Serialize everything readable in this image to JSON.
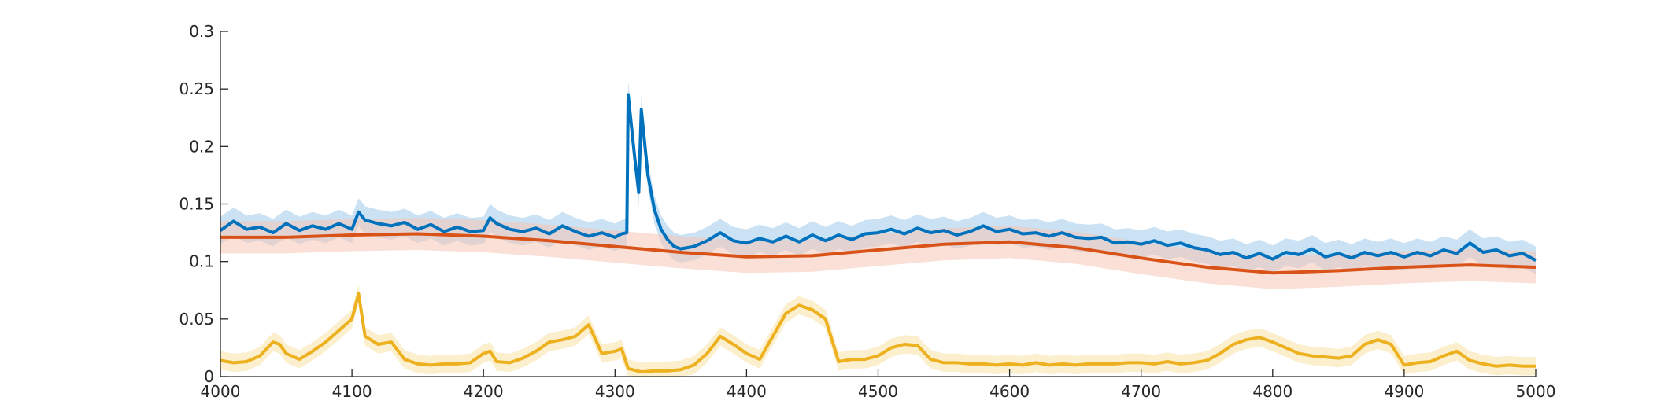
{
  "chart_data": {
    "type": "line",
    "title": "",
    "xlabel": "",
    "ylabel": "",
    "xlim": [
      4000,
      5000
    ],
    "ylim": [
      0,
      0.3
    ],
    "xticks": [
      4000,
      4100,
      4200,
      4300,
      4400,
      4500,
      4600,
      4700,
      4800,
      4900,
      5000
    ],
    "xtick_labels": [
      "4000",
      "4100",
      "4200",
      "4300",
      "4400",
      "4500",
      "4600",
      "4700",
      "4800",
      "4900",
      "5000"
    ],
    "yticks": [
      0,
      0.05,
      0.1,
      0.15,
      0.2,
      0.25,
      0.3
    ],
    "ytick_labels": [
      "0",
      "0.05",
      "0.1",
      "0.15",
      "0.2",
      "0.25",
      "0.3"
    ],
    "grid": false,
    "legend": "none",
    "series": [
      {
        "color": "#0072BD",
        "band_color": "#9ECAE9",
        "band_halfwidth": 0.012,
        "x": [
          4000,
          4010,
          4020,
          4030,
          4040,
          4050,
          4060,
          4070,
          4080,
          4090,
          4100,
          4105,
          4110,
          4120,
          4130,
          4140,
          4150,
          4160,
          4170,
          4180,
          4190,
          4200,
          4205,
          4210,
          4220,
          4230,
          4240,
          4250,
          4260,
          4270,
          4280,
          4290,
          4300,
          4305,
          4309,
          4310,
          4315,
          4318,
          4320,
          4325,
          4330,
          4335,
          4340,
          4345,
          4350,
          4360,
          4370,
          4380,
          4390,
          4400,
          4410,
          4420,
          4430,
          4440,
          4450,
          4460,
          4470,
          4480,
          4490,
          4500,
          4510,
          4520,
          4530,
          4540,
          4550,
          4560,
          4570,
          4580,
          4590,
          4600,
          4610,
          4620,
          4630,
          4640,
          4650,
          4660,
          4670,
          4680,
          4690,
          4700,
          4710,
          4720,
          4730,
          4740,
          4750,
          4760,
          4770,
          4780,
          4790,
          4800,
          4810,
          4820,
          4830,
          4840,
          4850,
          4860,
          4870,
          4880,
          4890,
          4900,
          4910,
          4920,
          4930,
          4940,
          4950,
          4960,
          4970,
          4980,
          4990,
          5000
        ],
        "y": [
          0.127,
          0.135,
          0.128,
          0.13,
          0.125,
          0.133,
          0.127,
          0.131,
          0.128,
          0.133,
          0.128,
          0.143,
          0.136,
          0.133,
          0.131,
          0.134,
          0.128,
          0.132,
          0.126,
          0.13,
          0.126,
          0.127,
          0.138,
          0.133,
          0.128,
          0.126,
          0.129,
          0.124,
          0.131,
          0.126,
          0.122,
          0.125,
          0.121,
          0.124,
          0.125,
          0.245,
          0.19,
          0.16,
          0.232,
          0.175,
          0.145,
          0.128,
          0.119,
          0.113,
          0.111,
          0.113,
          0.118,
          0.125,
          0.118,
          0.116,
          0.12,
          0.117,
          0.122,
          0.117,
          0.123,
          0.118,
          0.123,
          0.119,
          0.124,
          0.125,
          0.128,
          0.124,
          0.129,
          0.125,
          0.127,
          0.123,
          0.126,
          0.131,
          0.126,
          0.128,
          0.124,
          0.125,
          0.122,
          0.125,
          0.121,
          0.12,
          0.121,
          0.116,
          0.117,
          0.115,
          0.118,
          0.114,
          0.116,
          0.112,
          0.11,
          0.106,
          0.108,
          0.103,
          0.107,
          0.102,
          0.108,
          0.106,
          0.111,
          0.104,
          0.107,
          0.103,
          0.108,
          0.105,
          0.108,
          0.104,
          0.108,
          0.105,
          0.11,
          0.107,
          0.116,
          0.108,
          0.11,
          0.105,
          0.107,
          0.101
        ]
      },
      {
        "color": "#D95319",
        "band_color": "#F6C7B6",
        "band_halfwidth": 0.014,
        "x": [
          4000,
          4050,
          4100,
          4150,
          4200,
          4250,
          4300,
          4350,
          4400,
          4450,
          4500,
          4550,
          4600,
          4650,
          4700,
          4750,
          4800,
          4850,
          4900,
          4950,
          5000
        ],
        "y": [
          0.121,
          0.121,
          0.123,
          0.124,
          0.122,
          0.118,
          0.113,
          0.108,
          0.104,
          0.105,
          0.11,
          0.115,
          0.117,
          0.112,
          0.103,
          0.095,
          0.09,
          0.092,
          0.095,
          0.097,
          0.095
        ]
      },
      {
        "color": "#EDB120",
        "band_color": "#F8E2A6",
        "band_halfwidth": 0.008,
        "x": [
          4000,
          4010,
          4020,
          4030,
          4040,
          4045,
          4050,
          4060,
          4070,
          4080,
          4090,
          4100,
          4105,
          4110,
          4120,
          4130,
          4140,
          4150,
          4160,
          4170,
          4180,
          4190,
          4200,
          4205,
          4210,
          4220,
          4230,
          4240,
          4250,
          4260,
          4270,
          4280,
          4290,
          4300,
          4305,
          4310,
          4320,
          4330,
          4340,
          4350,
          4360,
          4370,
          4380,
          4390,
          4400,
          4410,
          4420,
          4430,
          4440,
          4450,
          4460,
          4470,
          4480,
          4490,
          4500,
          4510,
          4520,
          4530,
          4540,
          4550,
          4560,
          4570,
          4580,
          4590,
          4600,
          4610,
          4620,
          4630,
          4640,
          4650,
          4660,
          4670,
          4680,
          4690,
          4700,
          4710,
          4720,
          4730,
          4740,
          4750,
          4760,
          4770,
          4780,
          4790,
          4800,
          4810,
          4820,
          4830,
          4840,
          4850,
          4860,
          4870,
          4880,
          4890,
          4900,
          4910,
          4920,
          4930,
          4940,
          4950,
          4960,
          4970,
          4980,
          4990,
          5000
        ],
        "y": [
          0.014,
          0.012,
          0.013,
          0.018,
          0.03,
          0.028,
          0.02,
          0.015,
          0.022,
          0.03,
          0.04,
          0.05,
          0.072,
          0.035,
          0.028,
          0.03,
          0.015,
          0.011,
          0.01,
          0.011,
          0.011,
          0.012,
          0.02,
          0.022,
          0.013,
          0.012,
          0.016,
          0.022,
          0.03,
          0.032,
          0.035,
          0.045,
          0.02,
          0.022,
          0.024,
          0.007,
          0.004,
          0.005,
          0.005,
          0.006,
          0.01,
          0.02,
          0.035,
          0.028,
          0.02,
          0.015,
          0.035,
          0.055,
          0.062,
          0.058,
          0.05,
          0.013,
          0.015,
          0.015,
          0.018,
          0.025,
          0.028,
          0.027,
          0.015,
          0.012,
          0.012,
          0.011,
          0.011,
          0.01,
          0.011,
          0.01,
          0.012,
          0.01,
          0.011,
          0.01,
          0.011,
          0.011,
          0.011,
          0.012,
          0.012,
          0.011,
          0.013,
          0.011,
          0.012,
          0.014,
          0.02,
          0.028,
          0.032,
          0.034,
          0.03,
          0.025,
          0.02,
          0.018,
          0.017,
          0.016,
          0.018,
          0.028,
          0.032,
          0.028,
          0.01,
          0.012,
          0.013,
          0.018,
          0.022,
          0.014,
          0.011,
          0.009,
          0.01,
          0.009,
          0.009
        ]
      }
    ]
  }
}
